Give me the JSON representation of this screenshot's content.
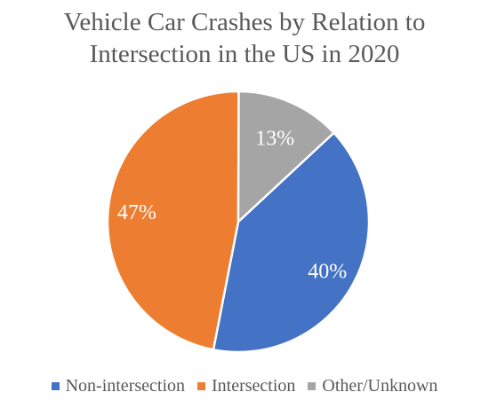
{
  "chart_data": {
    "type": "pie",
    "title_lines": [
      "Vehicle Car Crashes by Relation to",
      "Intersection in the US in 2020"
    ],
    "slices": [
      {
        "name": "Non-intersection",
        "value": 40,
        "label": "40%",
        "color": "#4472C4"
      },
      {
        "name": "Intersection",
        "value": 47,
        "label": "47%",
        "color": "#ED7D31"
      },
      {
        "name": "Other/Unknown",
        "value": 13,
        "label": "13%",
        "color": "#A5A5A5"
      }
    ],
    "legend_position": "bottom"
  }
}
